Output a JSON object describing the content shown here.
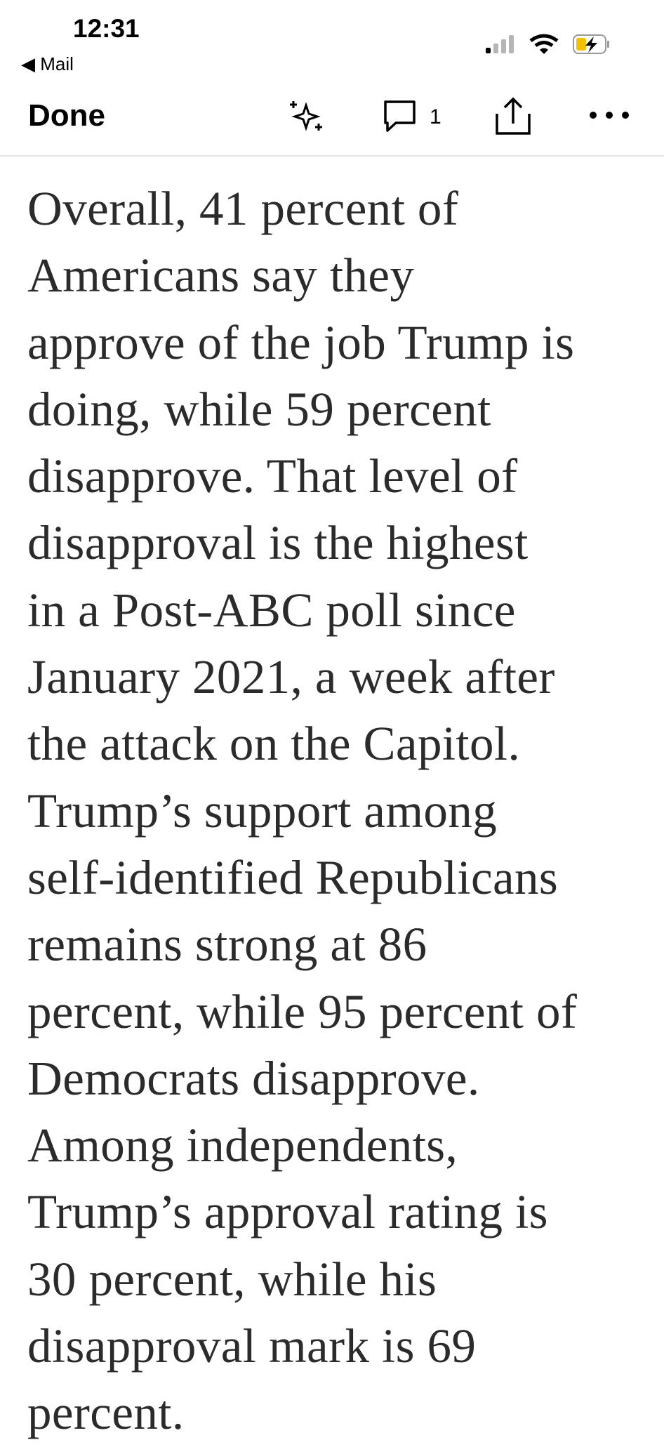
{
  "status_bar": {
    "time": "12:31",
    "back_app": "Mail"
  },
  "toolbar": {
    "done": "Done",
    "comment_count": "1"
  },
  "article": {
    "lines": [
      "Overall, 41 percent of",
      "Americans say they",
      "approve of the job Trump is",
      "doing, while 59 percent",
      "disapprove. That level of",
      "disapproval is the highest",
      "in a Post-ABC poll since",
      "January 2021, a week after",
      "the attack on the Capitol.",
      "Trump’s support among",
      "self-identified Republicans",
      "remains strong at 86",
      "percent, while 95 percent of",
      "Democrats disapprove.",
      "Among independents,",
      "Trump’s approval rating is",
      "30 percent, while his",
      "disapproval mark is 69",
      "percent."
    ]
  }
}
